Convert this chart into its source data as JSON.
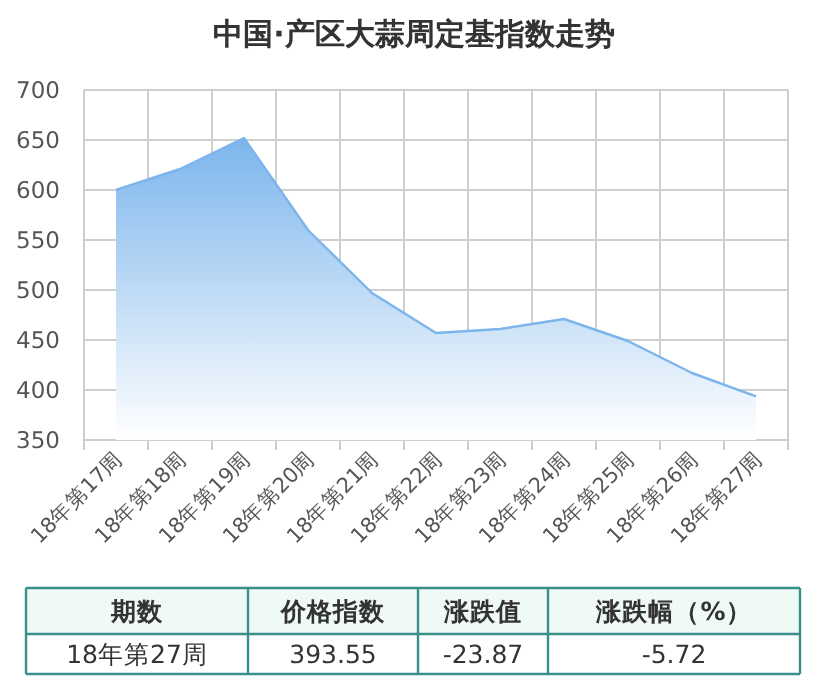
{
  "chart_data": {
    "type": "area",
    "title": "中国·产区大蒜周定基指数走势",
    "categories": [
      "18年第17周",
      "18年第18周",
      "18年第19周",
      "18年第20周",
      "18年第21周",
      "18年第22周",
      "18年第23周",
      "18年第24周",
      "18年第25周",
      "18年第26周",
      "18年第27周"
    ],
    "values": [
      600,
      621,
      652,
      560,
      497,
      457,
      461,
      471,
      449,
      417,
      393.55
    ],
    "color": "#7cb5ec",
    "ylim": [
      350,
      700
    ],
    "yticks": [
      350,
      400,
      450,
      500,
      550,
      600,
      650,
      700
    ],
    "grid": true,
    "marker": "none",
    "annotations": [
      "期数",
      "价格指数",
      "涨跌值",
      "涨跌幅（%）",
      "18年第27周",
      "393.55",
      "-23.87",
      "-5.72"
    ]
  }
}
